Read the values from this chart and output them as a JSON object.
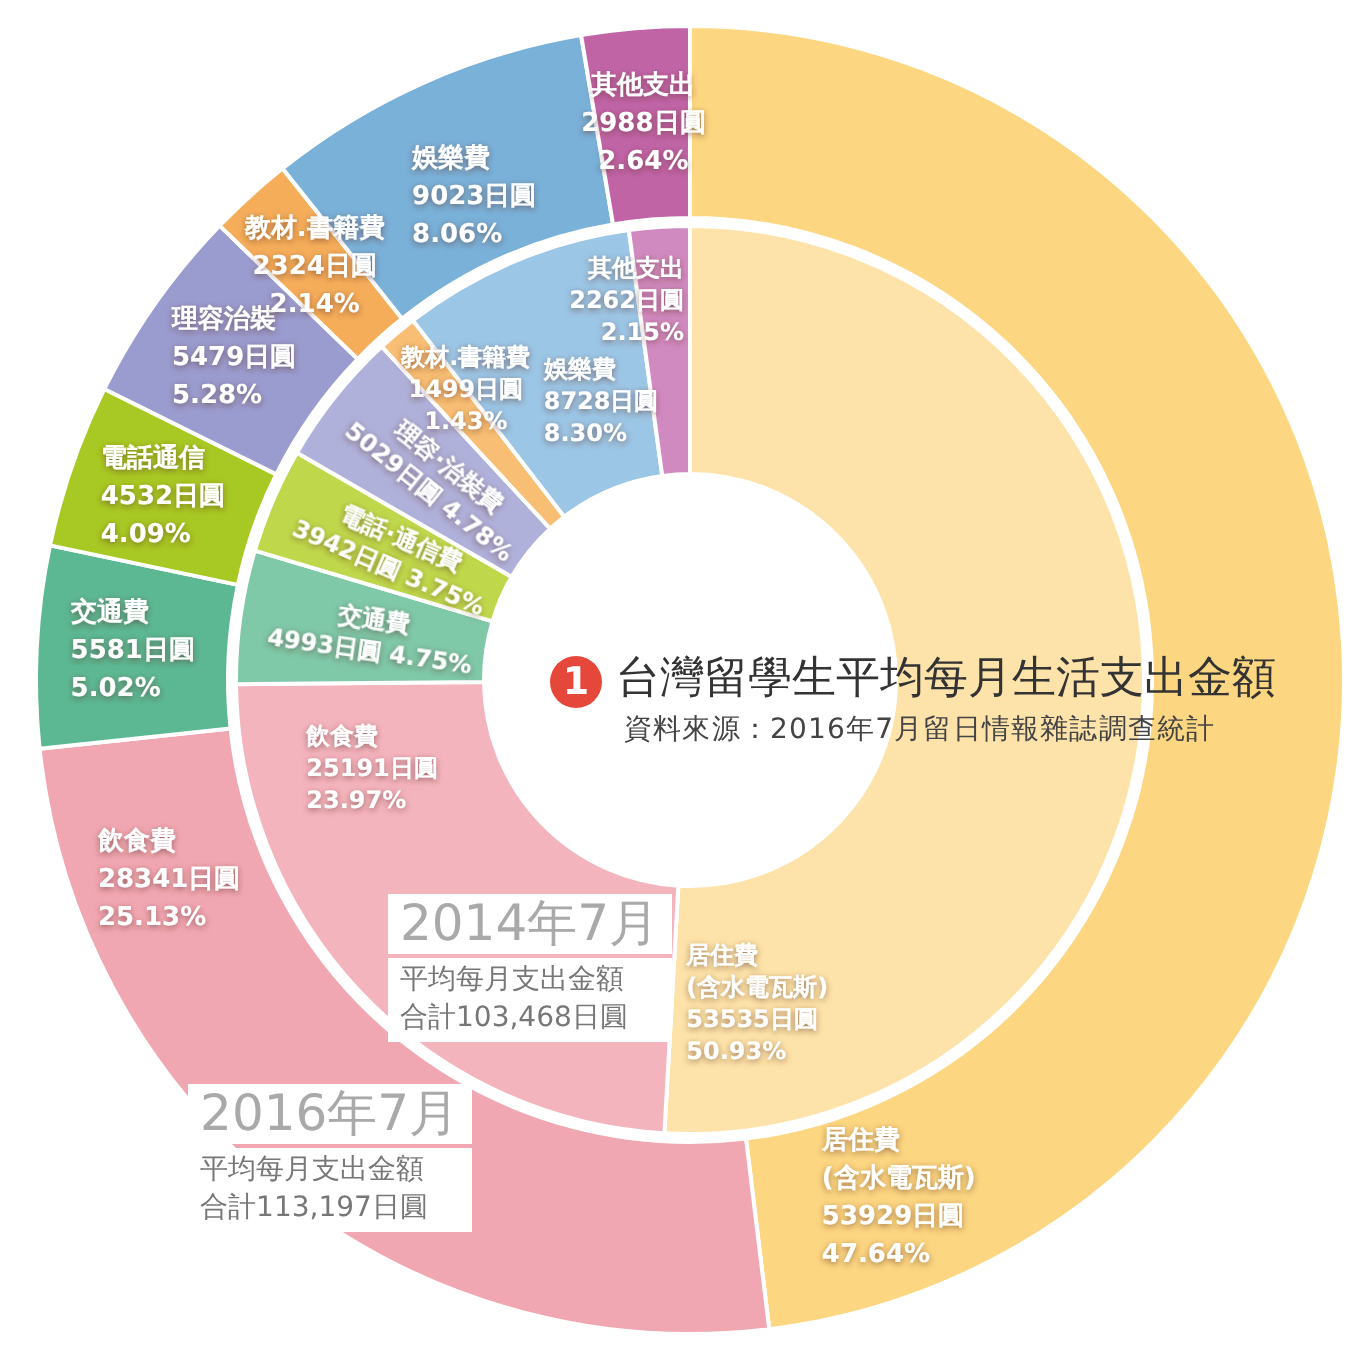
{
  "chart_data": [
    {
      "type": "donut",
      "title": "2016年7月",
      "annotations": [
        "平均每月支出金額",
        "合計113,197日圓"
      ],
      "categories": [
        "居住費\n(含水電瓦斯)",
        "飲食費",
        "交通費",
        "電話通信",
        "理容治裝",
        "教材.書籍費",
        "娛樂費",
        "其他支出"
      ],
      "values": [
        53929,
        28341,
        5581,
        4532,
        5479,
        2324,
        9023,
        2988
      ],
      "colors": [
        "#fcd681",
        "#f1a7b2",
        "#5cb893",
        "#a8c923",
        "#9a9ccf",
        "#f5ad5a",
        "#7ab1d9",
        "#c064a6"
      ],
      "value_labels": [
        "53929日圓\n47.64%",
        "28341日圓\n25.13%",
        "5581日圓\n5.02%",
        "4532日圓\n4.09%",
        "5479日圓\n5.28%",
        "2324日圓\n2.14%",
        "9023日圓\n8.06%",
        "2988日圓\n2.64%"
      ]
    },
    {
      "type": "donut",
      "title": "2014年7月",
      "annotations": [
        "平均每月支出金額",
        "合計103,468日圓"
      ],
      "categories": [
        "居住費\n(含水電瓦斯)",
        "飲食費",
        "交通費",
        "電話·通信費",
        "理容·治裝費",
        "教材.書籍費",
        "娛樂費",
        "其他支出"
      ],
      "values": [
        53535,
        25191,
        4993,
        3942,
        5029,
        1499,
        8728,
        2262
      ],
      "colors": [
        "#fde3a9",
        "#f4b4be",
        "#7fc8a8",
        "#bfd84b",
        "#b0b1da",
        "#f8be74",
        "#9cc6e6",
        "#d18abf"
      ],
      "value_labels": [
        "53535日圓\n50.93%",
        "25191日圓\n23.97%",
        "4993日圓 4.75%",
        "3942日圓 3.75%",
        "5029日圓 4.78%",
        "1499日圓\n1.43%",
        "8728日圓\n8.30%",
        "2262日圓\n2.15%"
      ]
    },
    {
      "type": "other",
      "title": "台灣留學生平均每月生活支出金額",
      "annotations": [
        "1",
        "資料來源：2016年7月留日情報雜誌調查統計"
      ]
    }
  ]
}
